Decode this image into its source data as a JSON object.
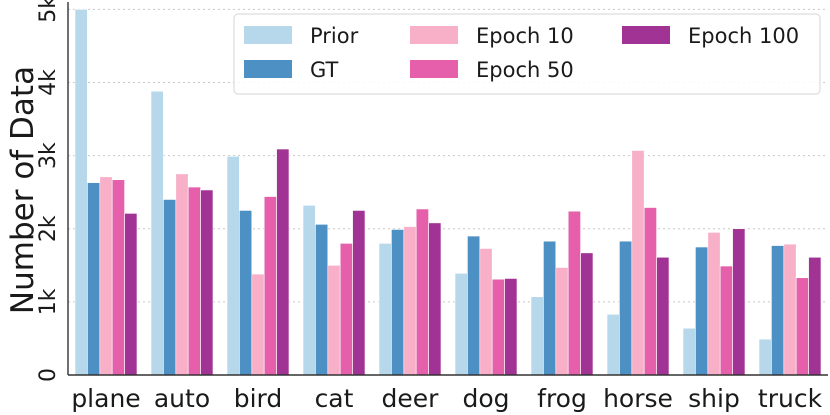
{
  "chart_data": {
    "type": "bar",
    "title": "",
    "xlabel": "",
    "ylabel": "Number of Data",
    "ylim": [
      0,
      5100
    ],
    "yticks": [
      {
        "value": 0,
        "label": "0"
      },
      {
        "value": 1000,
        "label": "1k"
      },
      {
        "value": 2000,
        "label": "2k"
      },
      {
        "value": 3000,
        "label": "3k"
      },
      {
        "value": 4000,
        "label": "4k"
      },
      {
        "value": 5000,
        "label": "5k"
      }
    ],
    "grid": "horizontal dotted",
    "legend_position": "top-right",
    "categories": [
      "plane",
      "auto",
      "bird",
      "cat",
      "deer",
      "dog",
      "frog",
      "horse",
      "ship",
      "truck"
    ],
    "series": [
      {
        "name": "Prior",
        "color": "#b7d7ea",
        "values": [
          5000,
          3880,
          2990,
          2320,
          1800,
          1390,
          1070,
          830,
          640,
          490
        ]
      },
      {
        "name": "GT",
        "color": "#4d90c4",
        "values": [
          2630,
          2400,
          2250,
          2060,
          1990,
          1900,
          1830,
          1830,
          1750,
          1770
        ]
      },
      {
        "name": "Epoch 10",
        "color": "#f7b0c8",
        "values": [
          2710,
          2750,
          1380,
          1500,
          2030,
          1730,
          1470,
          3070,
          1950,
          1790
        ]
      },
      {
        "name": "Epoch 50",
        "color": "#e65fab",
        "values": [
          2670,
          2570,
          2440,
          1800,
          2270,
          1310,
          2240,
          2290,
          1490,
          1330
        ]
      },
      {
        "name": "Epoch 100",
        "color": "#a13394",
        "values": [
          2210,
          2530,
          3090,
          2250,
          2080,
          1320,
          1670,
          1610,
          2000,
          1610
        ]
      }
    ]
  }
}
